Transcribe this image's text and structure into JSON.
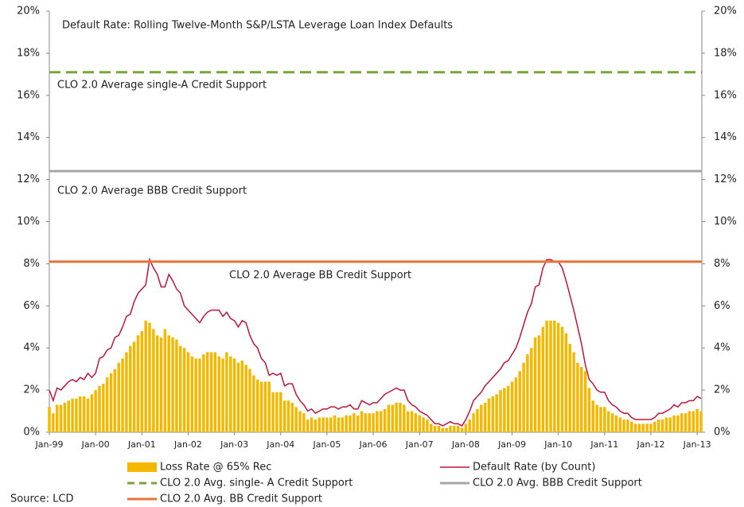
{
  "chart_data": {
    "type": "combo",
    "title": "Default Rate: Rolling Twelve-Month S&P/LSTA Leverage Loan Index Defaults",
    "source": "Source: LCD",
    "categories": [
      "Jan-99",
      null,
      null,
      null,
      null,
      null,
      null,
      null,
      null,
      null,
      null,
      null,
      "Jan-00",
      null,
      null,
      null,
      null,
      null,
      null,
      null,
      null,
      null,
      null,
      null,
      "Jan-01",
      null,
      null,
      null,
      null,
      null,
      null,
      null,
      null,
      null,
      null,
      null,
      "Jan-02",
      null,
      null,
      null,
      null,
      null,
      null,
      null,
      null,
      null,
      null,
      null,
      "Jan-03",
      null,
      null,
      null,
      null,
      null,
      null,
      null,
      null,
      null,
      null,
      null,
      "Jan-04",
      null,
      null,
      null,
      null,
      null,
      null,
      null,
      null,
      null,
      null,
      null,
      "Jan-05",
      null,
      null,
      null,
      null,
      null,
      null,
      null,
      null,
      null,
      null,
      null,
      "Jan-06",
      null,
      null,
      null,
      null,
      null,
      null,
      null,
      null,
      null,
      null,
      null,
      "Jan-07",
      null,
      null,
      null,
      null,
      null,
      null,
      null,
      null,
      null,
      null,
      null,
      "Jan-08",
      null,
      null,
      null,
      null,
      null,
      null,
      null,
      null,
      null,
      null,
      null,
      "Jan-09",
      null,
      null,
      null,
      null,
      null,
      null,
      null,
      null,
      null,
      null,
      null,
      "Jan-10",
      null,
      null,
      null,
      null,
      null,
      null,
      null,
      null,
      null,
      null,
      null,
      "Jan-11",
      null,
      null,
      null,
      null,
      null,
      null,
      null,
      null,
      null,
      null,
      null,
      "Jan-12",
      null,
      null,
      null,
      null,
      null,
      null,
      null,
      null,
      null,
      null,
      null,
      "Jan-13",
      null
    ],
    "series": [
      {
        "name": "Loss Rate @ 65% Rec",
        "type": "bar",
        "color": "#f5b800",
        "values": [
          1.2,
          0.9,
          1.3,
          1.3,
          1.4,
          1.5,
          1.6,
          1.6,
          1.7,
          1.7,
          1.6,
          1.8,
          2.0,
          2.2,
          2.3,
          2.6,
          2.8,
          3.0,
          3.3,
          3.5,
          3.8,
          4.1,
          4.3,
          4.6,
          4.8,
          5.3,
          5.2,
          4.9,
          4.6,
          4.5,
          4.9,
          4.6,
          4.5,
          4.4,
          4.1,
          4.0,
          3.8,
          3.6,
          3.5,
          3.5,
          3.7,
          3.8,
          3.8,
          3.8,
          3.6,
          3.5,
          3.8,
          3.6,
          3.5,
          3.3,
          3.4,
          3.2,
          3.0,
          2.7,
          2.5,
          2.4,
          2.4,
          2.4,
          1.9,
          1.9,
          1.9,
          1.5,
          1.5,
          1.4,
          1.2,
          1.0,
          0.9,
          0.6,
          0.7,
          0.6,
          0.7,
          0.7,
          0.7,
          0.7,
          0.8,
          0.7,
          0.7,
          0.8,
          0.8,
          0.9,
          0.8,
          1.0,
          0.9,
          0.9,
          0.9,
          1.0,
          1.0,
          1.1,
          1.3,
          1.3,
          1.4,
          1.4,
          1.3,
          1.0,
          1.0,
          0.9,
          0.8,
          0.7,
          0.6,
          0.4,
          0.3,
          0.3,
          0.2,
          0.2,
          0.3,
          0.3,
          0.3,
          0.2,
          0.4,
          0.6,
          0.9,
          1.1,
          1.3,
          1.4,
          1.6,
          1.7,
          1.8,
          2.0,
          2.1,
          2.2,
          2.4,
          2.6,
          2.9,
          3.3,
          3.7,
          4.0,
          4.5,
          4.6,
          5.0,
          5.3,
          5.3,
          5.3,
          5.2,
          5.0,
          4.7,
          4.2,
          3.8,
          3.3,
          3.1,
          2.9,
          2.1,
          1.5,
          1.3,
          1.2,
          1.2,
          1.0,
          0.9,
          0.8,
          0.7,
          0.6,
          0.6,
          0.5,
          0.4,
          0.4,
          0.4,
          0.4,
          0.4,
          0.5,
          0.6,
          0.6,
          0.7,
          0.7,
          0.8,
          0.8,
          0.9,
          0.9,
          1.0,
          1.0,
          1.1,
          1.0
        ]
      },
      {
        "name": "Default Rate (by Count)",
        "type": "line",
        "color": "#c0163a",
        "values": [
          2.0,
          1.5,
          2.1,
          2.0,
          2.2,
          2.4,
          2.5,
          2.4,
          2.6,
          2.5,
          2.8,
          2.6,
          2.8,
          3.5,
          3.6,
          3.9,
          4.0,
          4.5,
          4.6,
          5.0,
          5.5,
          5.6,
          6.2,
          6.6,
          6.8,
          7.0,
          8.2,
          7.8,
          7.5,
          6.9,
          6.9,
          7.5,
          7.2,
          6.8,
          6.6,
          6.0,
          5.8,
          5.6,
          5.4,
          5.2,
          5.5,
          5.7,
          5.8,
          5.8,
          5.8,
          5.5,
          5.7,
          5.4,
          5.3,
          5.0,
          5.3,
          5.2,
          4.6,
          4.2,
          4.0,
          3.5,
          3.3,
          2.7,
          2.8,
          2.7,
          2.8,
          2.2,
          2.3,
          2.3,
          1.8,
          1.5,
          1.3,
          1.0,
          1.1,
          0.9,
          1.0,
          1.1,
          1.1,
          1.2,
          1.2,
          1.1,
          1.2,
          1.2,
          1.3,
          1.1,
          1.1,
          1.5,
          1.4,
          1.3,
          1.4,
          1.4,
          1.6,
          1.8,
          1.9,
          2.0,
          2.1,
          2.0,
          2.0,
          1.5,
          1.3,
          1.2,
          1.0,
          0.9,
          0.8,
          0.6,
          0.4,
          0.4,
          0.3,
          0.4,
          0.5,
          0.4,
          0.4,
          0.3,
          0.6,
          1.0,
          1.5,
          1.7,
          1.9,
          2.2,
          2.4,
          2.6,
          2.8,
          3.0,
          3.3,
          3.4,
          3.7,
          4.0,
          4.5,
          5.1,
          5.7,
          6.1,
          6.9,
          7.0,
          7.8,
          8.2,
          8.2,
          8.1,
          8.1,
          7.8,
          7.2,
          6.5,
          5.8,
          5.0,
          4.2,
          3.2,
          2.5,
          2.3,
          2.0,
          1.9,
          1.9,
          1.5,
          1.3,
          1.2,
          1.0,
          0.9,
          0.9,
          0.7,
          0.6,
          0.6,
          0.6,
          0.6,
          0.6,
          0.7,
          0.9,
          0.9,
          1.0,
          1.1,
          1.3,
          1.2,
          1.4,
          1.4,
          1.5,
          1.5,
          1.7,
          1.6
        ]
      }
    ],
    "reference_lines": [
      {
        "name": "CLO 2.0 Avg. single- A Credit Support",
        "annotation": "CLO 2.0 Average single-A Credit Support",
        "value": 17.1,
        "color": "#7aa33a",
        "dashed": true
      },
      {
        "name": "CLO 2.0 Avg. BBB Credit Support",
        "annotation": "CLO 2.0 Average BBB Credit Support",
        "value": 12.4,
        "color": "#a6a6a6",
        "dashed": false
      },
      {
        "name": "CLO 2.0 Avg. BB Credit Support",
        "annotation": "CLO 2.0 Average BB Credit Support",
        "value": 8.1,
        "color": "#e8733a",
        "dashed": false
      }
    ],
    "ylim": [
      0,
      20
    ],
    "yticks": [
      {
        "value": 0,
        "label": "0%"
      },
      {
        "value": 2,
        "label": "2%"
      },
      {
        "value": 4,
        "label": "4%"
      },
      {
        "value": 6,
        "label": "6%"
      },
      {
        "value": 8,
        "label": "8%"
      },
      {
        "value": 10,
        "label": "10%"
      },
      {
        "value": 12,
        "label": "12%"
      },
      {
        "value": 14,
        "label": "14%"
      },
      {
        "value": 16,
        "label": "16%"
      },
      {
        "value": 18,
        "label": "18%"
      },
      {
        "value": 20,
        "label": "20%"
      }
    ],
    "y2lim": [
      0,
      20
    ],
    "y2ticks": [
      {
        "value": 0,
        "label": "0%"
      },
      {
        "value": 2,
        "label": "2%"
      },
      {
        "value": 4,
        "label": "4%"
      },
      {
        "value": 6,
        "label": "6%"
      },
      {
        "value": 8,
        "label": "8%"
      },
      {
        "value": 10,
        "label": "10%"
      },
      {
        "value": 12,
        "label": "12%"
      },
      {
        "value": 14,
        "label": "14%"
      },
      {
        "value": 16,
        "label": "16%"
      },
      {
        "value": 18,
        "label": "18%"
      },
      {
        "value": 20,
        "label": "20%"
      }
    ]
  }
}
